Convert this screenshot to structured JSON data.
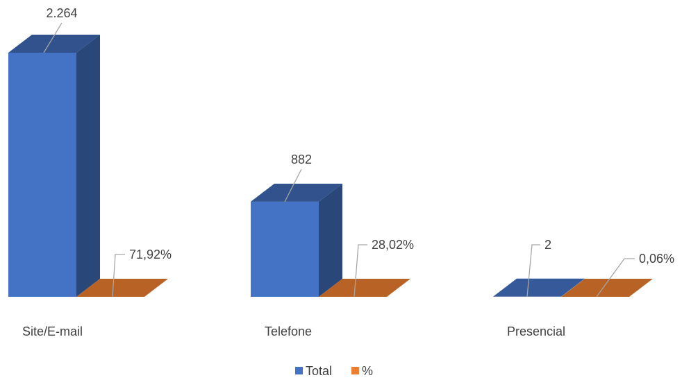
{
  "chart_data": {
    "type": "bar",
    "style": "3d-clustered-column",
    "categories": [
      "Site/E-mail",
      "Telefone",
      "Presencial"
    ],
    "series": [
      {
        "name": "Total",
        "color": "#4472c4",
        "values": [
          2264,
          882,
          2
        ],
        "labels": [
          "2.264",
          "882",
          "2"
        ]
      },
      {
        "name": "%",
        "color": "#ed7d31",
        "values": [
          71.92,
          28.02,
          0.06
        ],
        "labels": [
          "71,92%",
          "28,02%",
          "0,06%"
        ]
      }
    ],
    "legend_position": "bottom",
    "grid": false,
    "title": "",
    "xlabel": "",
    "ylabel": ""
  }
}
